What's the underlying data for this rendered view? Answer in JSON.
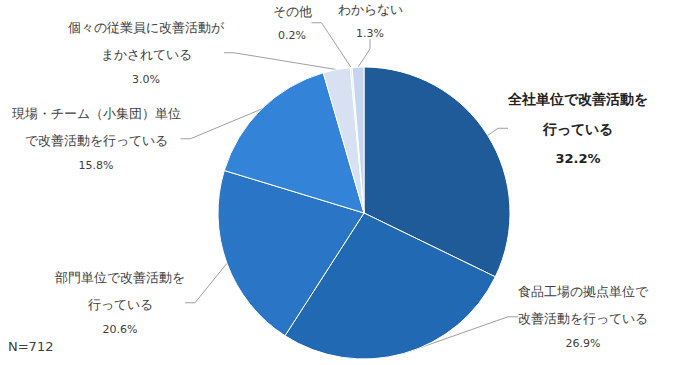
{
  "chart_data": {
    "type": "pie",
    "categories": [
      "全社単位で改善活動を\n行っている",
      "食品工場の拠点単位で\n改善活動を行っている",
      "部門単位で改善活動を\n行っている",
      "現場・チーム（小集団）単位\nで改善活動を行っている",
      "個々の従業員に改善活動が\nまかされている",
      "その他",
      "わからない"
    ],
    "values": [
      32.2,
      26.9,
      20.6,
      15.8,
      3.0,
      0.2,
      1.3
    ],
    "value_labels": [
      "32.2%",
      "26.9%",
      "20.6%",
      "15.8%",
      "3.0%",
      "0.2%",
      "1.3%"
    ],
    "colors": [
      "#1f5b99",
      "#2269b3",
      "#2a75c6",
      "#3384d8",
      "#d7e1f2",
      "#e6ecf7",
      "#c6d6ef"
    ],
    "data_labels": true,
    "annotation": "N=712"
  }
}
